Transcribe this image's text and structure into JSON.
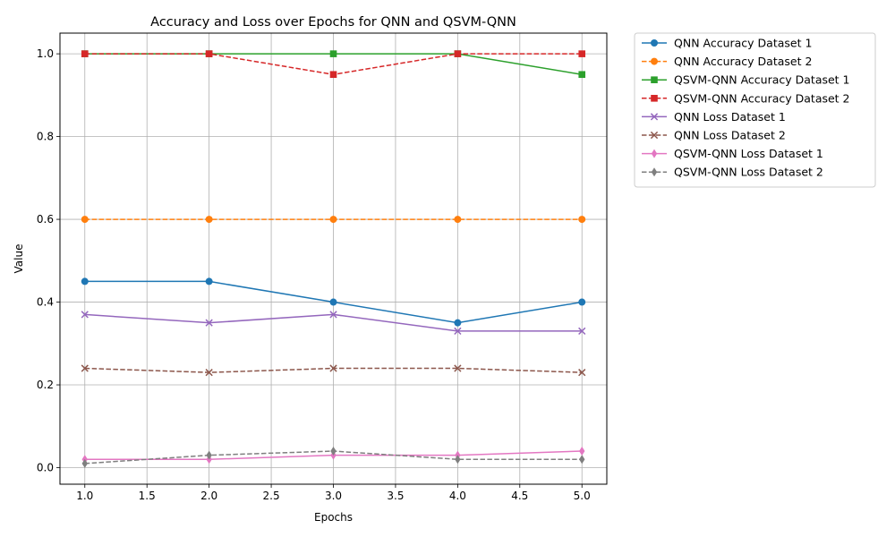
{
  "chart_data": {
    "type": "line",
    "title": "Accuracy and Loss over Epochs for QNN and QSVM-QNN",
    "xlabel": "Epochs",
    "ylabel": "Value",
    "xlim": [
      0.8,
      5.2
    ],
    "ylim": [
      -0.04,
      1.05
    ],
    "xticks": [
      1.0,
      1.5,
      2.0,
      2.5,
      3.0,
      3.5,
      4.0,
      4.5,
      5.0
    ],
    "xtick_labels": [
      "1.0",
      "1.5",
      "2.0",
      "2.5",
      "3.0",
      "3.5",
      "4.0",
      "4.5",
      "5.0"
    ],
    "yticks": [
      0.0,
      0.2,
      0.4,
      0.6,
      0.8,
      1.0
    ],
    "ytick_labels": [
      "0.0",
      "0.2",
      "0.4",
      "0.6",
      "0.8",
      "1.0"
    ],
    "grid": true,
    "legend_position": "outside-top-right",
    "x": [
      1,
      2,
      3,
      4,
      5
    ],
    "series": [
      {
        "name": "QNN Accuracy Dataset 1",
        "values": [
          0.45,
          0.45,
          0.4,
          0.35,
          0.4
        ],
        "color": "#1f77b4",
        "marker": "circle",
        "dashed": false
      },
      {
        "name": "QNN Accuracy Dataset 2",
        "values": [
          0.6,
          0.6,
          0.6,
          0.6,
          0.6
        ],
        "color": "#ff7f0e",
        "marker": "circle",
        "dashed": true
      },
      {
        "name": "QSVM-QNN Accuracy Dataset 1",
        "values": [
          1.0,
          1.0,
          1.0,
          1.0,
          0.95
        ],
        "color": "#2ca02c",
        "marker": "square",
        "dashed": false
      },
      {
        "name": "QSVM-QNN Accuracy Dataset 2",
        "values": [
          1.0,
          1.0,
          0.95,
          1.0,
          1.0
        ],
        "color": "#d62728",
        "marker": "square",
        "dashed": true
      },
      {
        "name": "QNN Loss Dataset 1",
        "values": [
          0.37,
          0.35,
          0.37,
          0.33,
          0.33
        ],
        "color": "#9467bd",
        "marker": "x",
        "dashed": false
      },
      {
        "name": "QNN Loss Dataset 2",
        "values": [
          0.24,
          0.23,
          0.24,
          0.24,
          0.23
        ],
        "color": "#8c564b",
        "marker": "x",
        "dashed": true
      },
      {
        "name": "QSVM-QNN Loss Dataset 1",
        "values": [
          0.02,
          0.02,
          0.03,
          0.03,
          0.04
        ],
        "color": "#e377c2",
        "marker": "thin-diamond",
        "dashed": false
      },
      {
        "name": "QSVM-QNN Loss Dataset 2",
        "values": [
          0.01,
          0.03,
          0.04,
          0.02,
          0.02
        ],
        "color": "#7f7f7f",
        "marker": "thin-diamond",
        "dashed": true
      }
    ]
  }
}
